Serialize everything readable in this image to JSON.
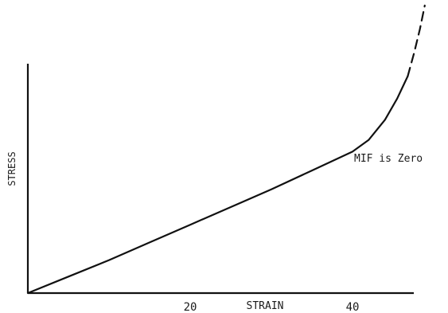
{
  "chart_data": {
    "type": "line",
    "title": "",
    "xlabel": "STRAIN",
    "ylabel": "STRESS",
    "annotation": "MIF is Zero",
    "xticks": [
      "20",
      "40"
    ],
    "xlim": [
      0,
      52
    ],
    "grid": false,
    "series": [
      {
        "style": "solid",
        "points": [
          [
            0,
            0
          ],
          [
            5,
            14
          ],
          [
            10,
            28
          ],
          [
            15,
            43
          ],
          [
            20,
            58
          ],
          [
            25,
            73
          ],
          [
            30,
            88
          ],
          [
            35,
            104
          ],
          [
            40,
            120
          ],
          [
            42,
            130
          ],
          [
            44,
            147
          ],
          [
            45.5,
            165
          ],
          [
            46.8,
            184
          ]
        ]
      },
      {
        "style": "dashed",
        "points": [
          [
            46.8,
            184
          ],
          [
            47.6,
            204
          ],
          [
            48.3,
            224
          ],
          [
            48.9,
            244
          ]
        ]
      }
    ]
  }
}
